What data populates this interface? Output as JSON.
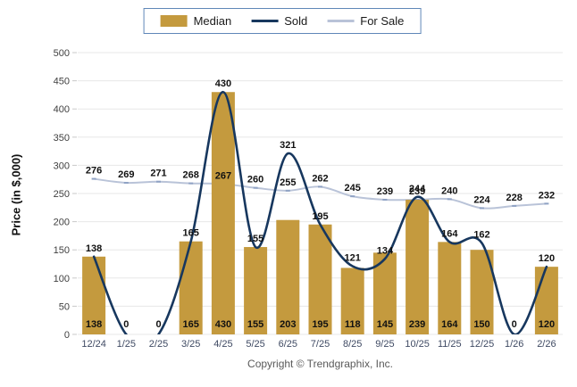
{
  "legend": {
    "items": [
      {
        "label": "Median",
        "swatch": "bar"
      },
      {
        "label": "Sold",
        "swatch": "line"
      },
      {
        "label": "For Sale",
        "swatch": "line"
      }
    ]
  },
  "footer": {
    "copyright": "Copyright © Trendgraphix, Inc."
  },
  "colors": {
    "median_bar": "#C49A3E",
    "sold_line": "#17375E",
    "for_sale_line": "#B9C3D8",
    "for_sale_marker": "#8FA2C4",
    "legend_border": "#5f87b8"
  },
  "chart_data": {
    "type": "combo (bar + 2 smooth lines)",
    "title": "",
    "ylabel": "Price (in $,000)",
    "xlabel": "",
    "ylim": [
      0,
      500
    ],
    "ytick_step": 50,
    "yticks": [
      0,
      50,
      100,
      150,
      200,
      250,
      300,
      350,
      400,
      450,
      500
    ],
    "grid": true,
    "legend_position": "top-center",
    "categories": [
      "12/24",
      "1/25",
      "2/25",
      "3/25",
      "4/25",
      "5/25",
      "6/25",
      "7/25",
      "8/25",
      "9/25",
      "10/25",
      "11/25",
      "12/25",
      "1/26",
      "2/26"
    ],
    "series": [
      {
        "name": "Median",
        "type": "bar",
        "color": "#C49A3E",
        "values": [
          138,
          0,
          0,
          165,
          430,
          155,
          203,
          195,
          118,
          145,
          239,
          164,
          150,
          0,
          120
        ],
        "label_position": "inside-bottom"
      },
      {
        "name": "Sold",
        "type": "line",
        "color": "#17375E",
        "values": [
          138,
          0,
          0,
          165,
          430,
          155,
          321,
          195,
          121,
          134,
          244,
          164,
          162,
          0,
          120
        ],
        "label_position": "above-point"
      },
      {
        "name": "For Sale",
        "type": "line",
        "color": "#B9C3D8",
        "values": [
          276,
          269,
          271,
          268,
          267,
          260,
          255,
          262,
          245,
          239,
          239,
          240,
          224,
          228,
          232
        ],
        "label_position": "above-point"
      }
    ]
  }
}
